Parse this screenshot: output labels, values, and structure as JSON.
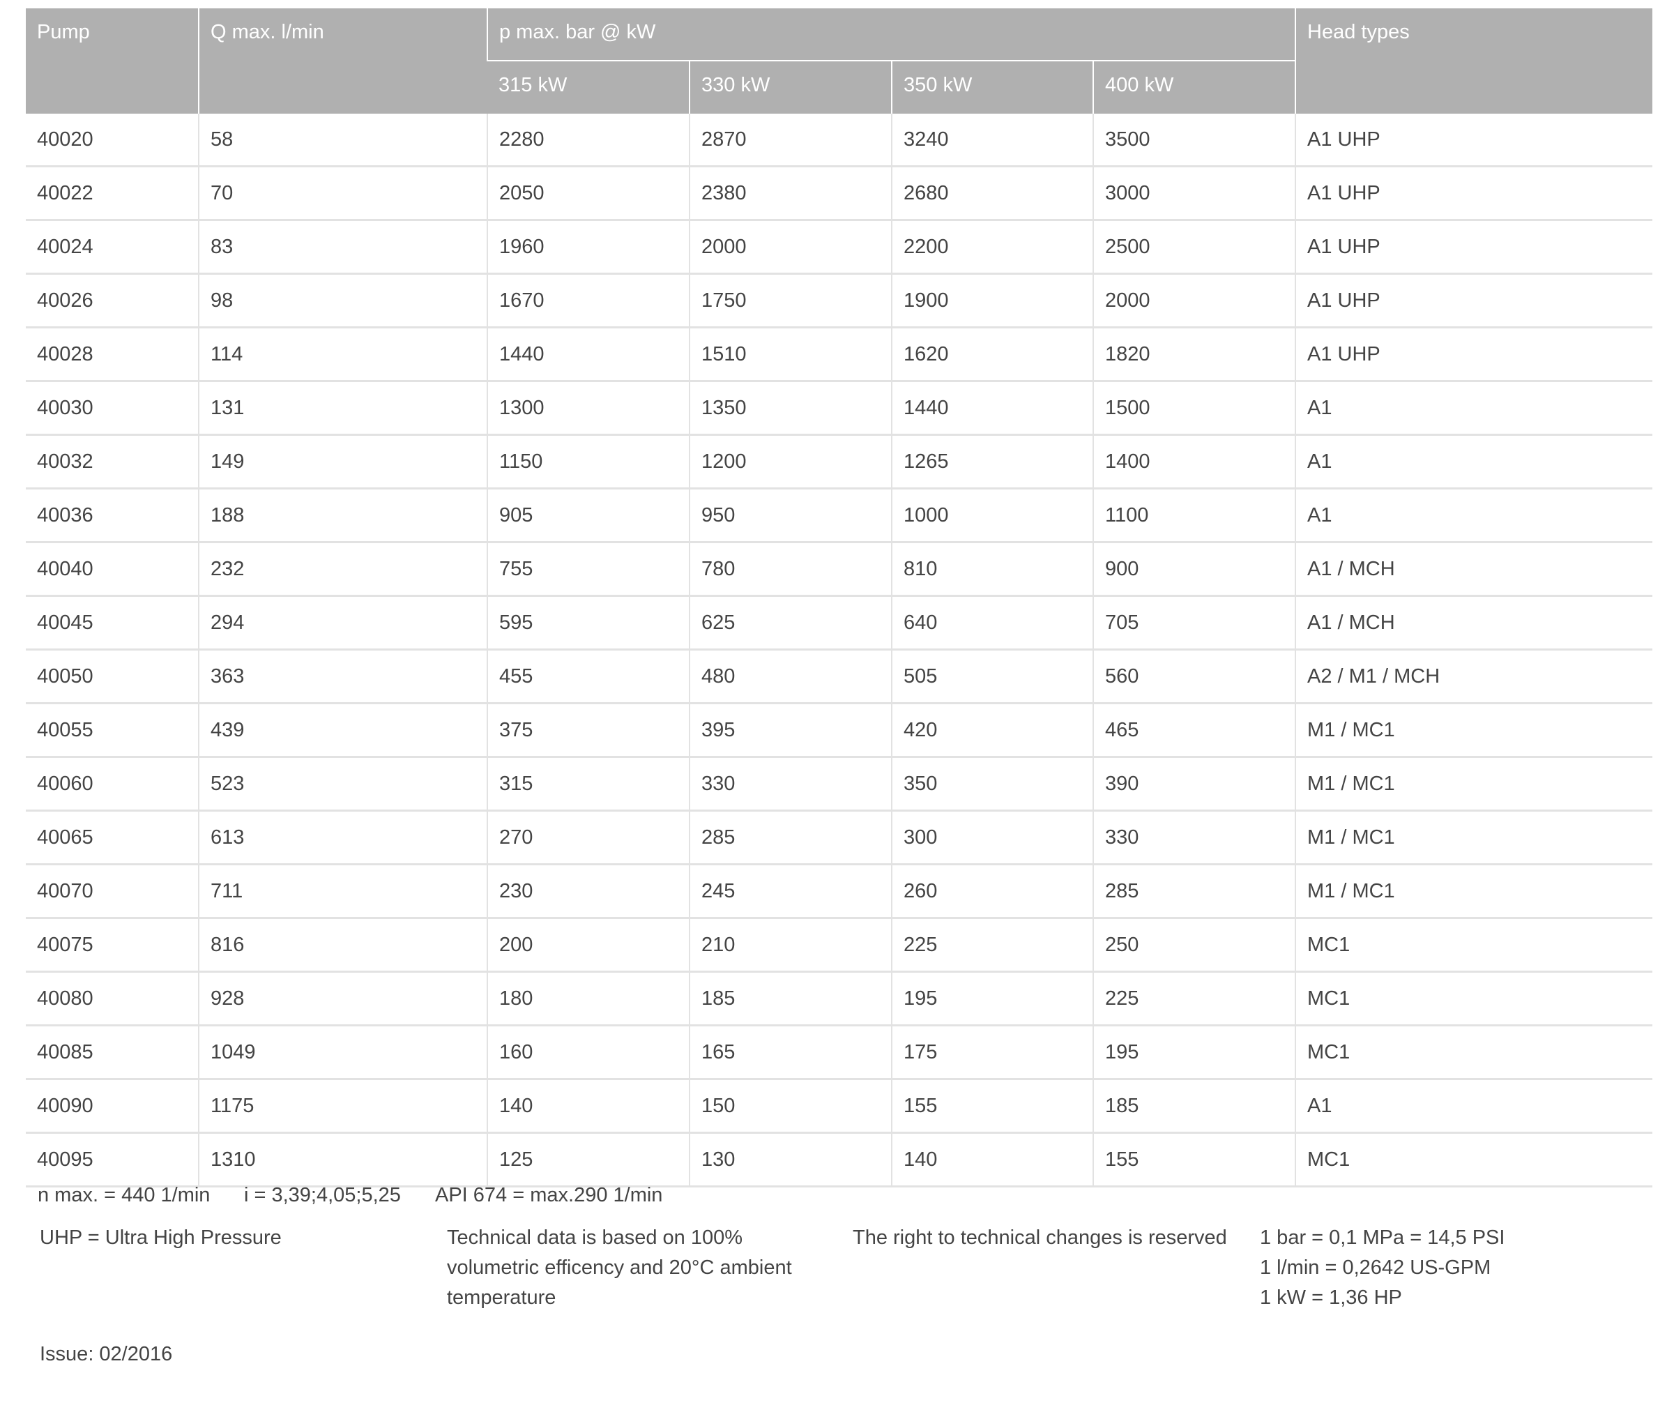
{
  "header": {
    "pump": "Pump",
    "q_max": "Q max. l/min",
    "p_max": "p max. bar @ kW",
    "kw": [
      "315 kW",
      "330 kW",
      "350 kW",
      "400 kW"
    ],
    "head_types": "Head types"
  },
  "rows": [
    [
      "40020",
      "58",
      "2280",
      "2870",
      "3240",
      "3500",
      "A1 UHP"
    ],
    [
      "40022",
      "70",
      "2050",
      "2380",
      "2680",
      "3000",
      "A1 UHP"
    ],
    [
      "40024",
      "83",
      "1960",
      "2000",
      "2200",
      "2500",
      "A1 UHP"
    ],
    [
      "40026",
      "98",
      "1670",
      "1750",
      "1900",
      "2000",
      "A1 UHP"
    ],
    [
      "40028",
      "114",
      "1440",
      "1510",
      "1620",
      "1820",
      "A1 UHP"
    ],
    [
      "40030",
      "131",
      "1300",
      "1350",
      "1440",
      "1500",
      "A1"
    ],
    [
      "40032",
      "149",
      "1150",
      "1200",
      "1265",
      "1400",
      "A1"
    ],
    [
      "40036",
      "188",
      "905",
      "950",
      "1000",
      "1100",
      "A1"
    ],
    [
      "40040",
      "232",
      "755",
      "780",
      "810",
      "900",
      "A1 / MCH"
    ],
    [
      "40045",
      "294",
      "595",
      "625",
      "640",
      "705",
      "A1 / MCH"
    ],
    [
      "40050",
      "363",
      "455",
      "480",
      "505",
      "560",
      "A2 / M1 / MCH"
    ],
    [
      "40055",
      "439",
      "375",
      "395",
      "420",
      "465",
      "M1 / MC1"
    ],
    [
      "40060",
      "523",
      "315",
      "330",
      "350",
      "390",
      "M1 / MC1"
    ],
    [
      "40065",
      "613",
      "270",
      "285",
      "300",
      "330",
      "M1 / MC1"
    ],
    [
      "40070",
      "711",
      "230",
      "245",
      "260",
      "285",
      "M1 / MC1"
    ],
    [
      "40075",
      "816",
      "200",
      "210",
      "225",
      "250",
      "MC1"
    ],
    [
      "40080",
      "928",
      "180",
      "185",
      "195",
      "225",
      "MC1"
    ],
    [
      "40085",
      "1049",
      "160",
      "165",
      "175",
      "195",
      "MC1"
    ],
    [
      "40090",
      "1175",
      "140",
      "150",
      "155",
      "185",
      "A1"
    ],
    [
      "40095",
      "1310",
      "125",
      "130",
      "140",
      "155",
      "MC1"
    ]
  ],
  "footer": {
    "n_max": "n max. = 440 1/min",
    "ratio": "i = 3,39;4,05;5,25",
    "api": "API 674 = max.290 1/min",
    "uhp": "UHP = Ultra High Pressure",
    "tech_data": [
      "Technical data is based on 100%",
      "volumetric efficency and 20°C ambient",
      "temperature"
    ],
    "rights": "The right to technical changes is reserved",
    "conversions": [
      "1 bar = 0,1 MPa = 14,5 PSI",
      "1 l/min = 0,2642 US-GPM",
      "1 kW = 1,36 HP"
    ],
    "issue": "Issue: 02/2016"
  }
}
